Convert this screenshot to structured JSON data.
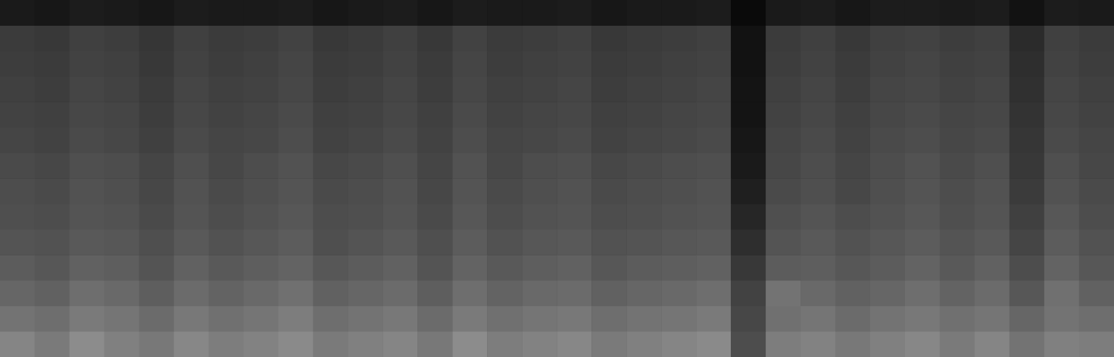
{
  "chart_data": {
    "type": "heatmap",
    "tick_labels": false,
    "grid": false,
    "zlim": [
      0,
      100
    ],
    "values": [
      [
        52,
        48,
        55,
        50,
        47,
        53,
        49,
        51,
        54,
        48,
        50,
        52,
        47,
        55,
        49,
        51,
        53,
        48,
        50,
        52,
        54,
        30,
        49,
        51,
        47,
        50,
        53,
        48,
        52,
        45,
        50,
        49
      ],
      [
        45,
        43,
        48,
        46,
        42,
        47,
        44,
        46,
        49,
        43,
        45,
        47,
        42,
        48,
        44,
        46,
        47,
        43,
        45,
        46,
        48,
        28,
        44,
        46,
        42,
        45,
        47,
        44,
        46,
        40,
        45,
        43
      ],
      [
        40,
        38,
        43,
        41,
        37,
        42,
        39,
        41,
        44,
        38,
        40,
        42,
        37,
        43,
        39,
        41,
        42,
        38,
        40,
        41,
        43,
        26,
        45,
        41,
        38,
        40,
        43,
        39,
        42,
        34,
        44,
        38
      ],
      [
        36,
        34,
        38,
        37,
        33,
        38,
        35,
        37,
        39,
        34,
        36,
        38,
        33,
        39,
        35,
        37,
        38,
        34,
        36,
        37,
        38,
        22,
        36,
        37,
        34,
        36,
        39,
        35,
        38,
        30,
        39,
        34
      ],
      [
        33,
        32,
        35,
        34,
        31,
        35,
        32,
        34,
        36,
        31,
        33,
        35,
        31,
        36,
        32,
        34,
        35,
        32,
        33,
        34,
        35,
        18,
        33,
        35,
        32,
        34,
        36,
        33,
        35,
        27,
        36,
        32
      ],
      [
        31,
        30,
        33,
        32,
        29,
        33,
        30,
        32,
        34,
        30,
        31,
        33,
        29,
        34,
        30,
        32,
        33,
        30,
        31,
        32,
        33,
        15,
        31,
        33,
        30,
        32,
        34,
        31,
        33,
        25,
        34,
        30
      ],
      [
        30,
        29,
        32,
        31,
        28,
        32,
        29,
        31,
        33,
        29,
        30,
        32,
        28,
        33,
        29,
        31,
        32,
        29,
        30,
        31,
        32,
        12,
        29,
        31,
        28,
        31,
        33,
        30,
        32,
        23,
        32,
        29
      ],
      [
        29,
        28,
        31,
        30,
        27,
        31,
        28,
        30,
        32,
        28,
        29,
        31,
        27,
        32,
        28,
        30,
        31,
        28,
        29,
        30,
        31,
        10,
        28,
        30,
        27,
        30,
        32,
        29,
        31,
        22,
        31,
        28
      ],
      [
        27,
        26,
        29,
        28,
        25,
        29,
        27,
        28,
        30,
        26,
        27,
        29,
        26,
        30,
        27,
        28,
        29,
        26,
        27,
        28,
        29,
        9,
        27,
        29,
        26,
        29,
        30,
        28,
        29,
        21,
        29,
        27
      ],
      [
        26,
        25,
        28,
        27,
        24,
        28,
        26,
        27,
        29,
        25,
        26,
        28,
        25,
        29,
        26,
        27,
        28,
        25,
        26,
        27,
        28,
        8,
        26,
        28,
        25,
        28,
        29,
        27,
        28,
        20,
        28,
        26
      ],
      [
        25,
        24,
        27,
        26,
        23,
        27,
        25,
        26,
        28,
        24,
        25,
        27,
        24,
        28,
        25,
        26,
        27,
        24,
        25,
        26,
        27,
        8,
        25,
        27,
        24,
        27,
        28,
        26,
        27,
        19,
        27,
        25
      ],
      [
        24,
        23,
        26,
        25,
        22,
        26,
        24,
        25,
        27,
        23,
        24,
        26,
        23,
        27,
        24,
        25,
        26,
        23,
        24,
        25,
        26,
        7,
        24,
        26,
        23,
        26,
        27,
        25,
        26,
        18,
        26,
        24
      ],
      [
        23,
        22,
        25,
        24,
        21,
        25,
        23,
        24,
        26,
        22,
        23,
        25,
        22,
        26,
        23,
        24,
        25,
        22,
        23,
        24,
        25,
        7,
        23,
        25,
        22,
        25,
        26,
        24,
        25,
        17,
        25,
        23
      ],
      [
        10,
        9,
        11,
        10,
        9,
        11,
        10,
        10,
        11,
        9,
        10,
        11,
        9,
        11,
        10,
        10,
        11,
        9,
        10,
        10,
        11,
        4,
        10,
        11,
        9,
        11,
        11,
        10,
        11,
        7,
        11,
        10
      ]
    ]
  }
}
